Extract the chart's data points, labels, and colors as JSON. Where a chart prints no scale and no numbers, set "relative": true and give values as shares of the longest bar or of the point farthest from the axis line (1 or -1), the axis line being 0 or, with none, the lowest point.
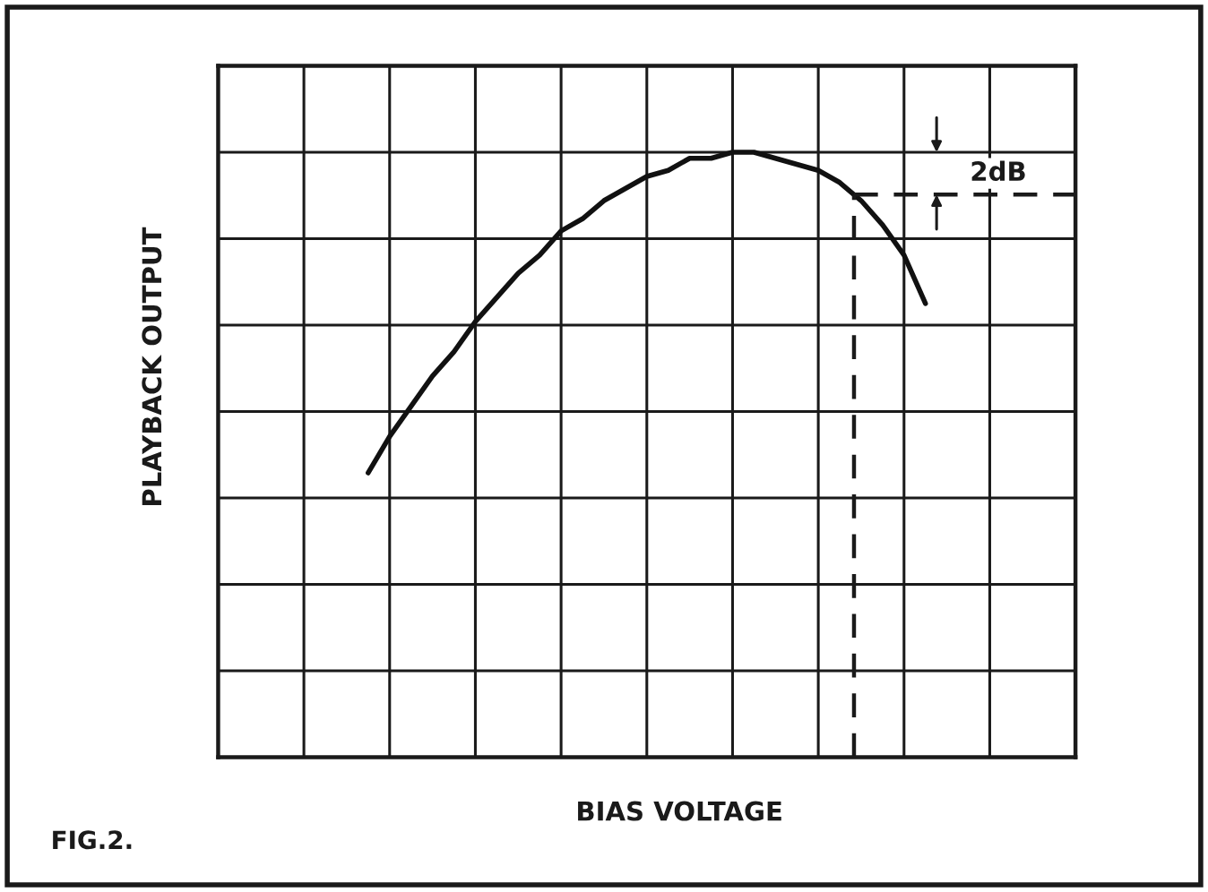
{
  "chart_data": {
    "type": "line",
    "xlabel": "BIAS VOLTAGE",
    "ylabel": "PLAYBACK OUTPUT",
    "relative": true,
    "grid": true,
    "categories": [
      null,
      null,
      null,
      null,
      null,
      null,
      null,
      null,
      null,
      null,
      null,
      null,
      null,
      null,
      null,
      null,
      null,
      null,
      null,
      null,
      null,
      null,
      null,
      null,
      null,
      null,
      null,
      null,
      null,
      null,
      null,
      null,
      null,
      null,
      null,
      null,
      null,
      null,
      null,
      null,
      null
    ],
    "series": [
      {
        "color": "#111111",
        "values": [
          null,
          null,
          null,
          null,
          null,
          null,
          null,
          0.47,
          0.53,
          0.58,
          0.63,
          0.67,
          0.72,
          0.76,
          0.8,
          0.83,
          0.87,
          0.89,
          0.92,
          0.94,
          0.96,
          0.97,
          0.99,
          0.99,
          1.0,
          1.0,
          0.99,
          0.98,
          0.97,
          0.95,
          0.92,
          0.88,
          0.83,
          0.75,
          null,
          null,
          null,
          null,
          null,
          null,
          null
        ]
      }
    ],
    "ref_lines": [
      {
        "axis": "y",
        "value": 0.93,
        "label": "2dB",
        "line_style": "dashed"
      }
    ],
    "annotations": [
      "FIG.2."
    ]
  }
}
